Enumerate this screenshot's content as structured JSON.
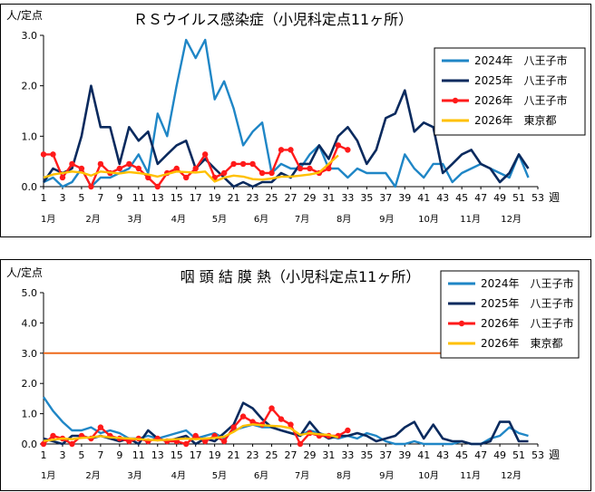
{
  "charts": [
    {
      "title": "ＲＳウイルス感染症（小児科定点11ヶ所）",
      "y_unit": "人/定点",
      "x_unit": "週",
      "y_ticks": [
        "0.0",
        "1.0",
        "2.0",
        "3.0"
      ],
      "legend": [
        "2024年　八王子市",
        "2025年　八王子市",
        "2026年　八王子市",
        "2026年　東京都"
      ]
    },
    {
      "title": "咽 頭 結 膜 熱（小児科定点11ヶ所）",
      "y_unit": "人/定点",
      "x_unit": "週",
      "y_ticks": [
        "0.0",
        "1.0",
        "2.0",
        "3.0",
        "4.0",
        "5.0"
      ],
      "legend": [
        "2024年　八王子市",
        "2025年　八王子市",
        "2026年　八王子市",
        "2026年　東京都"
      ]
    }
  ],
  "x_ticks": [
    "1",
    "3",
    "5",
    "7",
    "9",
    "11",
    "13",
    "15",
    "17",
    "19",
    "21",
    "23",
    "25",
    "27",
    "29",
    "31",
    "33",
    "35",
    "37",
    "39",
    "41",
    "43",
    "45",
    "47",
    "49",
    "51",
    "53"
  ],
  "month_labels": [
    "1月",
    "2月",
    "3月",
    "4月",
    "5月",
    "6月",
    "7月",
    "8月",
    "9月",
    "10月",
    "11月",
    "12月"
  ],
  "colors": {
    "y2024": "#1f86c6",
    "y2025": "#0a2a5e",
    "y2026": "#ff1a1a",
    "tokyo": "#ffc000",
    "threshold": "#ee6a1c"
  },
  "chart_data": [
    {
      "type": "line",
      "title": "ＲＳウイルス感染症（小児科定点11ヶ所）",
      "xlabel": "週",
      "ylabel": "人/定点",
      "ylim": [
        0,
        3
      ],
      "grid": false,
      "legend_position": "top-right",
      "series": [
        {
          "name": "2024年　八王子市",
          "x_start": 1,
          "values": [
            0.09,
            0.18,
            0.0,
            0.09,
            0.36,
            0.0,
            0.18,
            0.18,
            0.27,
            0.36,
            0.64,
            0.27,
            1.45,
            1.0,
            2.0,
            2.91,
            2.55,
            2.91,
            1.73,
            2.09,
            1.55,
            0.82,
            1.09,
            1.27,
            0.27,
            0.45,
            0.36,
            0.36,
            0.64,
            0.82,
            0.36,
            0.36,
            0.18,
            0.36,
            0.27,
            0.27,
            0.27,
            0.0,
            0.64,
            0.36,
            0.18,
            0.45,
            0.45,
            0.09,
            0.27,
            0.36,
            0.45,
            0.36,
            0.27,
            0.18,
            0.64,
            0.18
          ]
        },
        {
          "name": "2025年　八王子市",
          "x_start": 1,
          "values": [
            0.09,
            0.36,
            0.27,
            0.36,
            1.0,
            2.0,
            1.18,
            1.18,
            0.45,
            1.18,
            0.91,
            1.09,
            0.45,
            0.64,
            0.82,
            0.91,
            0.36,
            0.55,
            0.36,
            0.18,
            0.0,
            0.09,
            0.0,
            0.09,
            0.09,
            0.27,
            0.18,
            0.45,
            0.45,
            0.82,
            0.55,
            1.0,
            1.18,
            0.91,
            0.45,
            0.73,
            1.36,
            1.45,
            1.91,
            1.09,
            1.27,
            1.18,
            0.27,
            0.45,
            0.64,
            0.73,
            0.45,
            0.36,
            0.09,
            0.27,
            0.64,
            0.36
          ]
        },
        {
          "name": "2026年　八王子市",
          "x_start": 1,
          "values": [
            0.64,
            0.64,
            0.18,
            0.45,
            0.36,
            0.0,
            0.45,
            0.27,
            0.36,
            0.45,
            0.36,
            0.18,
            0.0,
            0.27,
            0.36,
            0.18,
            0.36,
            0.64,
            0.18,
            0.27,
            0.45,
            0.45,
            0.45,
            0.27,
            0.27,
            0.73,
            0.73,
            0.36,
            0.36,
            0.27,
            0.36,
            0.82,
            0.73
          ]
        },
        {
          "name": "2026年　東京都",
          "x_start": 1,
          "values": [
            0.18,
            0.24,
            0.27,
            0.3,
            0.28,
            0.22,
            0.3,
            0.28,
            0.26,
            0.29,
            0.27,
            0.24,
            0.2,
            0.25,
            0.3,
            0.29,
            0.28,
            0.3,
            0.1,
            0.18,
            0.22,
            0.2,
            0.15,
            0.14,
            0.16,
            0.2,
            0.2,
            0.22,
            0.24,
            0.28,
            0.45,
            0.62
          ]
        }
      ]
    },
    {
      "type": "line",
      "title": "咽 頭 結 膜 熱（小児科定点11ヶ所）",
      "xlabel": "週",
      "ylabel": "人/定点",
      "ylim": [
        0,
        5
      ],
      "grid": false,
      "legend_position": "top-right",
      "reference_line": 3.0,
      "series": [
        {
          "name": "2024年　八王子市",
          "x_start": 1,
          "values": [
            1.55,
            1.09,
            0.73,
            0.45,
            0.45,
            0.55,
            0.36,
            0.45,
            0.36,
            0.18,
            0.18,
            0.27,
            0.18,
            0.27,
            0.36,
            0.45,
            0.18,
            0.27,
            0.36,
            0.18,
            0.45,
            0.55,
            0.64,
            0.55,
            0.55,
            0.45,
            0.36,
            0.27,
            0.45,
            0.36,
            0.27,
            0.18,
            0.27,
            0.18,
            0.36,
            0.27,
            0.09,
            0.0,
            0.0,
            0.09,
            0.0,
            0.0,
            0.0,
            0.0,
            0.09,
            0.0,
            0.0,
            0.18,
            0.27,
            0.55,
            0.36,
            0.27
          ]
        },
        {
          "name": "2025年　八王子市",
          "x_start": 1,
          "values": [
            0.18,
            0.09,
            0.0,
            0.27,
            0.27,
            0.18,
            0.27,
            0.18,
            0.09,
            0.18,
            0.0,
            0.45,
            0.18,
            0.09,
            0.18,
            0.27,
            0.0,
            0.18,
            0.09,
            0.36,
            0.64,
            1.36,
            1.18,
            0.82,
            0.55,
            0.45,
            0.36,
            0.27,
            0.73,
            0.36,
            0.18,
            0.27,
            0.27,
            0.36,
            0.27,
            0.09,
            0.18,
            0.27,
            0.55,
            0.73,
            0.18,
            0.64,
            0.18,
            0.09,
            0.09,
            0.0,
            0.0,
            0.09,
            0.73,
            0.73,
            0.09,
            0.09
          ]
        },
        {
          "name": "2026年　八王子市",
          "x_start": 1,
          "values": [
            0.0,
            0.27,
            0.18,
            0.0,
            0.27,
            0.18,
            0.55,
            0.27,
            0.18,
            0.09,
            0.18,
            0.09,
            0.18,
            0.09,
            0.09,
            0.0,
            0.27,
            0.09,
            0.27,
            0.09,
            0.55,
            0.91,
            0.73,
            0.64,
            1.18,
            0.82,
            0.64,
            0.0,
            0.36,
            0.27,
            0.27,
            0.27,
            0.45
          ]
        },
        {
          "name": "2026年　東京都",
          "x_start": 1,
          "values": [
            0.1,
            0.14,
            0.18,
            0.16,
            0.2,
            0.22,
            0.26,
            0.22,
            0.2,
            0.18,
            0.16,
            0.14,
            0.12,
            0.14,
            0.16,
            0.18,
            0.16,
            0.18,
            0.2,
            0.24,
            0.4,
            0.6,
            0.65,
            0.62,
            0.6,
            0.58,
            0.52,
            0.3,
            0.36,
            0.32,
            0.3,
            0.22
          ]
        }
      ]
    }
  ]
}
